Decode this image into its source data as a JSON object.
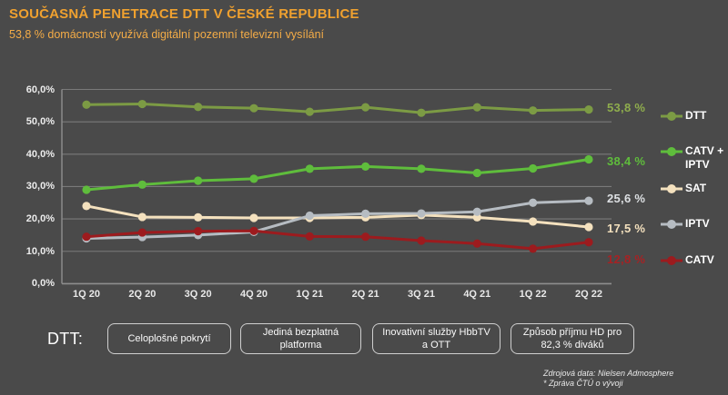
{
  "header": {
    "title": "SOUČASNÁ PENETRACE DTT V ČESKÉ REPUBLICE",
    "subtitle": "53,8 % domácností využívá digitální pozemní televizní vysílání",
    "title_color": "#F0A12F",
    "subtitle_color": "#F4AC47"
  },
  "chart_data": {
    "type": "line",
    "title": "",
    "xlabel": "",
    "ylabel": "",
    "ylim": [
      0,
      60
    ],
    "ytick_step": 10,
    "ytick_labels_top_down": [
      "60,0%",
      "50,0%",
      "40,0%",
      "30,0%",
      "20,0%",
      "10,0%",
      "0,0%"
    ],
    "grid": "horizontal",
    "legend_position": "right",
    "categories": [
      "1Q 20",
      "2Q 20",
      "3Q 20",
      "4Q 20",
      "1Q 21",
      "2Q 21",
      "3Q 21",
      "4Q 21",
      "1Q 22",
      "2Q 22"
    ],
    "series": [
      {
        "name": "DTT",
        "color": "#7C9B44",
        "end_label": "53,8 %",
        "end_label_color": "#8FAD4D",
        "values": [
          55.3,
          55.5,
          54.6,
          54.2,
          53.1,
          54.5,
          52.8,
          54.5,
          53.5,
          53.8
        ]
      },
      {
        "name": "CATV + IPTV",
        "color": "#5FBD3C",
        "end_label": "38,4 %",
        "end_label_color": "#5FBD3C",
        "values": [
          29.0,
          30.6,
          31.8,
          32.4,
          35.5,
          36.2,
          35.5,
          34.2,
          35.6,
          38.4
        ]
      },
      {
        "name": "SAT",
        "color": "#F4E1BE",
        "end_label": "17,5 %",
        "end_label_color": "#F4E1BE",
        "values": [
          24.0,
          20.6,
          20.5,
          20.3,
          20.3,
          20.5,
          21.2,
          20.5,
          19.2,
          17.5
        ]
      },
      {
        "name": "IPTV",
        "color": "#B6BCC2",
        "end_label": "25,6 %",
        "end_label_color": "#DDE0E3",
        "values": [
          14.0,
          14.4,
          15.0,
          16.0,
          21.0,
          21.6,
          21.7,
          22.2,
          25.0,
          25.6
        ]
      },
      {
        "name": "CATV",
        "color": "#9C1B1E",
        "end_label": "12,8 %",
        "end_label_color": "#A62224",
        "values": [
          14.5,
          15.8,
          16.2,
          16.3,
          14.6,
          14.5,
          13.3,
          12.4,
          10.8,
          12.8
        ]
      }
    ]
  },
  "footer": {
    "dtt_label": "DTT:",
    "boxes": [
      {
        "label": "Celoplošné pokrytí"
      },
      {
        "label": "Jediná bezplatná platforma"
      },
      {
        "label": "Inovativní služby HbbTV a OTT"
      },
      {
        "label": "Způsob příjmu HD pro 82,3 % diváků"
      }
    ]
  },
  "source": {
    "line1": "Zdrojová data: Nielsen Admosphere",
    "line2": "* Zpráva ČTÚ o vývoji"
  },
  "colors": {
    "background": "#4A4A4A",
    "grid": "#7A7A7A",
    "axis": "#8E8E8E",
    "tick_text": "#ECECEC",
    "box_border": "#CFCFCF"
  }
}
